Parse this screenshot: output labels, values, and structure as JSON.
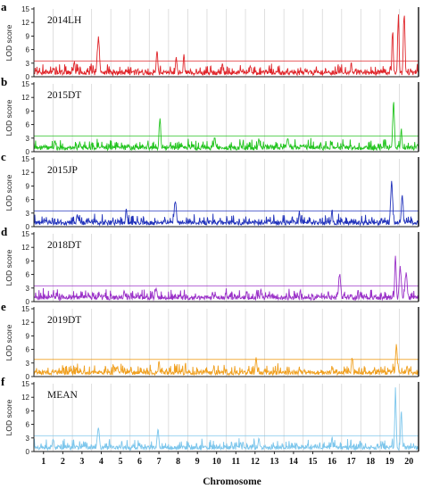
{
  "figure": {
    "xlabel": "Chromosome",
    "chromosomes": [
      "1",
      "2",
      "3",
      "4",
      "5",
      "6",
      "7",
      "8",
      "9",
      "10",
      "11",
      "12",
      "13",
      "14",
      "15",
      "16",
      "17",
      "18",
      "19",
      "20"
    ],
    "ylabel": "LOD score"
  },
  "chart_data": [
    {
      "type": "line",
      "panel_letter": "a",
      "series_name": "2014LH",
      "color": "#e0262b",
      "threshold": 3.5,
      "ylim": [
        0,
        15
      ],
      "yticks": [
        0,
        3,
        6,
        9,
        12,
        15
      ],
      "ylabel": "LOD score",
      "xlabel": "",
      "peaks": [
        {
          "chromosome": 2.6,
          "lod": 3.5
        },
        {
          "chromosome": 3.85,
          "lod": 9.0
        },
        {
          "chromosome": 6.9,
          "lod": 6.0
        },
        {
          "chromosome": 7.9,
          "lod": 4.5
        },
        {
          "chromosome": 8.3,
          "lod": 5.0
        },
        {
          "chromosome": 10.3,
          "lod": 3.0
        },
        {
          "chromosome": 17.0,
          "lod": 3.5
        },
        {
          "chromosome": 19.15,
          "lod": 11.0
        },
        {
          "chromosome": 19.45,
          "lod": 14.5
        },
        {
          "chromosome": 19.75,
          "lod": 15.0
        }
      ]
    },
    {
      "type": "line",
      "panel_letter": "b",
      "series_name": "2015DT",
      "color": "#22c41e",
      "threshold": 3.5,
      "ylim": [
        0,
        15
      ],
      "yticks": [
        0,
        3,
        6,
        9,
        12,
        15
      ],
      "ylabel": "LOD score",
      "xlabel": "",
      "peaks": [
        {
          "chromosome": 1.6,
          "lod": 2.5
        },
        {
          "chromosome": 2.9,
          "lod": 2.0
        },
        {
          "chromosome": 7.05,
          "lod": 8.0
        },
        {
          "chromosome": 9.9,
          "lod": 3.5
        },
        {
          "chromosome": 12.2,
          "lod": 3.0
        },
        {
          "chromosome": 13.7,
          "lod": 3.0
        },
        {
          "chromosome": 16.0,
          "lod": 2.5
        },
        {
          "chromosome": 19.2,
          "lod": 11.5
        },
        {
          "chromosome": 19.6,
          "lod": 5.5
        }
      ]
    },
    {
      "type": "line",
      "panel_letter": "c",
      "series_name": "2015JP",
      "color": "#2233bb",
      "threshold": 3.5,
      "ylim": [
        0,
        15
      ],
      "yticks": [
        0,
        3,
        6,
        9,
        12,
        15
      ],
      "ylabel": "LOD score",
      "xlabel": "",
      "peaks": [
        {
          "chromosome": 2.75,
          "lod": 3.0
        },
        {
          "chromosome": 5.3,
          "lod": 4.5
        },
        {
          "chromosome": 7.85,
          "lod": 6.0
        },
        {
          "chromosome": 14.3,
          "lod": 3.5
        },
        {
          "chromosome": 16.0,
          "lod": 4.0
        },
        {
          "chromosome": 19.1,
          "lod": 10.5
        },
        {
          "chromosome": 19.65,
          "lod": 7.5
        }
      ]
    },
    {
      "type": "line",
      "panel_letter": "d",
      "series_name": "2018DT",
      "color": "#9a30c8",
      "threshold": 3.5,
      "ylim": [
        0,
        15
      ],
      "yticks": [
        0,
        3,
        6,
        9,
        12,
        15
      ],
      "ylabel": "LOD score",
      "xlabel": "",
      "peaks": [
        {
          "chromosome": 5.2,
          "lod": 2.5
        },
        {
          "chromosome": 6.85,
          "lod": 3.0
        },
        {
          "chromosome": 12.3,
          "lod": 3.0
        },
        {
          "chromosome": 16.4,
          "lod": 6.5
        },
        {
          "chromosome": 19.3,
          "lod": 11.0
        },
        {
          "chromosome": 19.55,
          "lod": 8.0
        },
        {
          "chromosome": 19.85,
          "lod": 6.5
        }
      ]
    },
    {
      "type": "line",
      "panel_letter": "e",
      "series_name": "2019DT",
      "color": "#f0a020",
      "threshold": 3.8,
      "ylim": [
        0,
        15
      ],
      "yticks": [
        0,
        3,
        6,
        9,
        12,
        15
      ],
      "ylabel": "LOD score",
      "xlabel": "",
      "peaks": [
        {
          "chromosome": 7.0,
          "lod": 4.0
        },
        {
          "chromosome": 12.05,
          "lod": 4.5
        },
        {
          "chromosome": 14.3,
          "lod": 2.0
        },
        {
          "chromosome": 16.0,
          "lod": 2.5
        },
        {
          "chromosome": 17.05,
          "lod": 4.5
        },
        {
          "chromosome": 19.35,
          "lod": 7.5
        },
        {
          "chromosome": 19.9,
          "lod": 2.5
        }
      ]
    },
    {
      "type": "line",
      "panel_letter": "f",
      "series_name": "MEAN",
      "color": "#7cc6ec",
      "threshold": 3.5,
      "ylim": [
        0,
        15
      ],
      "yticks": [
        0,
        3,
        6,
        9,
        12,
        15
      ],
      "ylabel": "LOD score",
      "xlabel": "",
      "peaks": [
        {
          "chromosome": 1.5,
          "lod": 3.0
        },
        {
          "chromosome": 3.85,
          "lod": 5.5
        },
        {
          "chromosome": 6.95,
          "lod": 5.0
        },
        {
          "chromosome": 12.2,
          "lod": 3.0
        },
        {
          "chromosome": 16.0,
          "lod": 3.5
        },
        {
          "chromosome": 19.3,
          "lod": 14.5
        },
        {
          "chromosome": 19.6,
          "lod": 9.5
        }
      ]
    }
  ]
}
